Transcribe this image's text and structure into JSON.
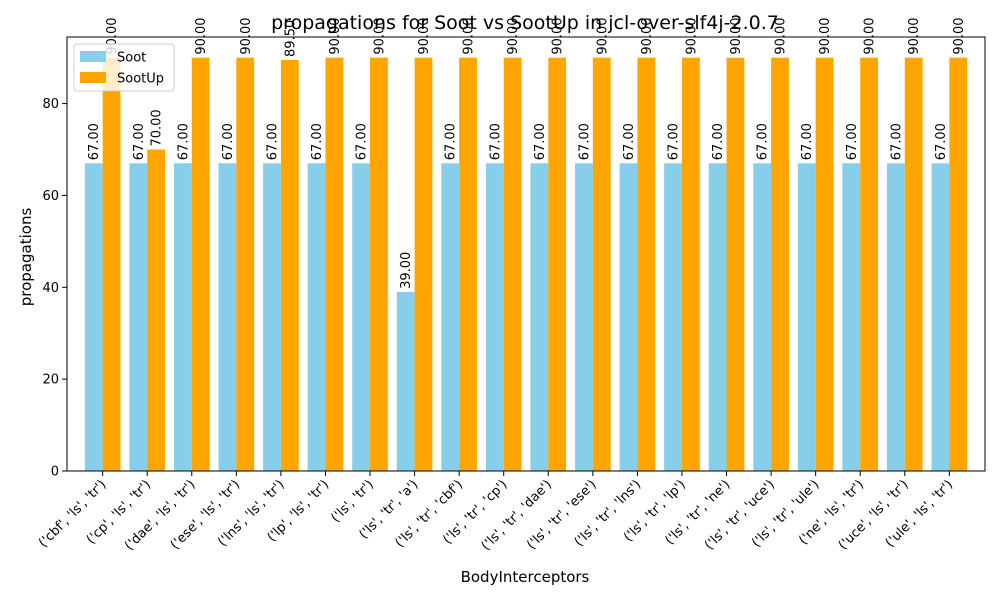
{
  "chart_data": {
    "type": "bar",
    "title": "propagations for Soot vs SootUp in jcl-over-slf4j-2.0.7",
    "xlabel": "BodyInterceptors",
    "ylabel": "propagations",
    "ylim": [
      0,
      94.5
    ],
    "yticks": [
      0,
      20,
      40,
      60,
      80
    ],
    "grid": false,
    "legend_position": "top-left",
    "categories": [
      "('cbf', 'ls', 'tr')",
      "('cp', 'ls', 'tr')",
      "('dae', 'ls', 'tr')",
      "('ese', 'ls', 'tr')",
      "('lns', 'ls', 'tr')",
      "('lp', 'ls', 'tr')",
      "('ls', 'tr')",
      "('ls', 'tr', 'a')",
      "('ls', 'tr', 'cbf')",
      "('ls', 'tr', 'cp')",
      "('ls', 'tr', 'dae')",
      "('ls', 'tr', 'ese')",
      "('ls', 'tr', 'lns')",
      "('ls', 'tr', 'lp')",
      "('ls', 'tr', 'ne')",
      "('ls', 'tr', 'uce')",
      "('ls', 'tr', 'ule')",
      "('ne', 'ls', 'tr')",
      "('uce', 'ls', 'tr')",
      "('ule', 'ls', 'tr')"
    ],
    "series": [
      {
        "name": "Soot",
        "color": "#87ceeb",
        "values": [
          67,
          67,
          67,
          67,
          67,
          67,
          67,
          39,
          67,
          67,
          67,
          67,
          67,
          67,
          67,
          67,
          67,
          67,
          67,
          67
        ]
      },
      {
        "name": "SootUp",
        "color": "#ffa500",
        "values": [
          90,
          70,
          90,
          90,
          89.5,
          90,
          90,
          90,
          90,
          90,
          90,
          90,
          90,
          90,
          90,
          90,
          90,
          90,
          90,
          90
        ]
      }
    ],
    "data_labels": [
      [
        "67.00",
        "67.00",
        "67.00",
        "67.00",
        "67.00",
        "67.00",
        "67.00",
        "39.00",
        "67.00",
        "67.00",
        "67.00",
        "67.00",
        "67.00",
        "67.00",
        "67.00",
        "67.00",
        "67.00",
        "67.00",
        "67.00",
        "67.00"
      ],
      [
        "90.00",
        "70.00",
        "90.00",
        "90.00",
        "89.50",
        "90.00",
        "90.00",
        "90.00",
        "90.00",
        "90.00",
        "90.00",
        "90.00",
        "90.00",
        "90.00",
        "90.00",
        "90.00",
        "90.00",
        "90.00",
        "90.00",
        "90.00"
      ]
    ]
  }
}
